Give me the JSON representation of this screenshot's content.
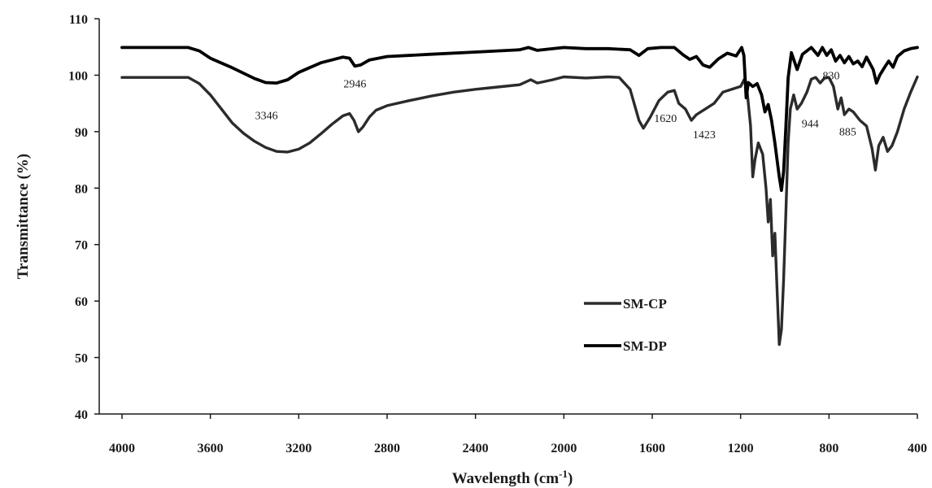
{
  "chart_data": {
    "type": "line",
    "xlabel": "Wavelength (cm",
    "xlabel_sup": "-1",
    "xlabel_end": ")",
    "ylabel": "Transmittance (%)",
    "xlim": [
      4000,
      400
    ],
    "ylim": [
      40,
      110
    ],
    "x_ticks": [
      "4000",
      "3600",
      "3200",
      "2800",
      "2400",
      "2000",
      "1600",
      "1200",
      "800",
      "400"
    ],
    "y_ticks": [
      "40",
      "50",
      "60",
      "70",
      "80",
      "90",
      "100",
      "110"
    ],
    "grid": false,
    "legend_position": "center-left",
    "annotations": [
      {
        "text": "3346",
        "x": 3346,
        "y": 92.2
      },
      {
        "text": "2946",
        "x": 2946,
        "y": 97.8
      },
      {
        "text": "1620",
        "x": 1540,
        "y": 91.7
      },
      {
        "text": "1423",
        "x": 1365,
        "y": 88.8
      },
      {
        "text": "944",
        "x": 885,
        "y": 90.8
      },
      {
        "text": "885",
        "x": 715,
        "y": 89.3
      },
      {
        "text": "830",
        "x": 790,
        "y": 99.3
      }
    ],
    "series": [
      {
        "name": "SM-CP",
        "color": "#2b2b2b",
        "points": [
          [
            4000,
            99.6
          ],
          [
            3700,
            99.6
          ],
          [
            3650,
            98.5
          ],
          [
            3600,
            96.5
          ],
          [
            3550,
            94
          ],
          [
            3500,
            91.5
          ],
          [
            3450,
            89.7
          ],
          [
            3400,
            88.3
          ],
          [
            3350,
            87.2
          ],
          [
            3300,
            86.5
          ],
          [
            3250,
            86.4
          ],
          [
            3200,
            86.9
          ],
          [
            3150,
            88
          ],
          [
            3100,
            89.6
          ],
          [
            3050,
            91.3
          ],
          [
            3000,
            92.8
          ],
          [
            2970,
            93.2
          ],
          [
            2950,
            92
          ],
          [
            2930,
            90
          ],
          [
            2910,
            90.8
          ],
          [
            2880,
            92.6
          ],
          [
            2850,
            93.8
          ],
          [
            2800,
            94.6
          ],
          [
            2700,
            95.5
          ],
          [
            2600,
            96.3
          ],
          [
            2500,
            97
          ],
          [
            2400,
            97.5
          ],
          [
            2300,
            97.9
          ],
          [
            2200,
            98.3
          ],
          [
            2150,
            99.2
          ],
          [
            2120,
            98.6
          ],
          [
            2050,
            99.2
          ],
          [
            2000,
            99.7
          ],
          [
            1900,
            99.5
          ],
          [
            1800,
            99.7
          ],
          [
            1750,
            99.6
          ],
          [
            1700,
            97.5
          ],
          [
            1660,
            92
          ],
          [
            1640,
            90.6
          ],
          [
            1610,
            92.5
          ],
          [
            1570,
            95.5
          ],
          [
            1530,
            97
          ],
          [
            1500,
            97.3
          ],
          [
            1480,
            95
          ],
          [
            1450,
            94
          ],
          [
            1423,
            92
          ],
          [
            1400,
            93
          ],
          [
            1360,
            94
          ],
          [
            1320,
            95
          ],
          [
            1280,
            97
          ],
          [
            1240,
            97.5
          ],
          [
            1200,
            98
          ],
          [
            1180,
            99.5
          ],
          [
            1170,
            97
          ],
          [
            1155,
            91
          ],
          [
            1145,
            82
          ],
          [
            1135,
            85
          ],
          [
            1120,
            88
          ],
          [
            1100,
            86
          ],
          [
            1085,
            80
          ],
          [
            1075,
            74
          ],
          [
            1065,
            78
          ],
          [
            1055,
            68
          ],
          [
            1045,
            72
          ],
          [
            1035,
            62
          ],
          [
            1025,
            52.3
          ],
          [
            1015,
            55
          ],
          [
            1005,
            64
          ],
          [
            995,
            76
          ],
          [
            985,
            88
          ],
          [
            975,
            94
          ],
          [
            960,
            96.5
          ],
          [
            944,
            94
          ],
          [
            925,
            95
          ],
          [
            900,
            97
          ],
          [
            880,
            99.3
          ],
          [
            860,
            99.6
          ],
          [
            840,
            98.6
          ],
          [
            820,
            99.5
          ],
          [
            800,
            99.6
          ],
          [
            780,
            98
          ],
          [
            760,
            94
          ],
          [
            745,
            96
          ],
          [
            730,
            93
          ],
          [
            710,
            94
          ],
          [
            690,
            93.5
          ],
          [
            660,
            92
          ],
          [
            630,
            91
          ],
          [
            605,
            87
          ],
          [
            590,
            83.2
          ],
          [
            575,
            87.5
          ],
          [
            555,
            89
          ],
          [
            535,
            86.5
          ],
          [
            515,
            87.5
          ],
          [
            490,
            90
          ],
          [
            460,
            94
          ],
          [
            430,
            97
          ],
          [
            400,
            99.7
          ]
        ]
      },
      {
        "name": "SM-DP",
        "color": "#000000",
        "points": [
          [
            4000,
            104.9
          ],
          [
            3700,
            104.9
          ],
          [
            3650,
            104.3
          ],
          [
            3600,
            103
          ],
          [
            3500,
            101.3
          ],
          [
            3400,
            99.4
          ],
          [
            3350,
            98.7
          ],
          [
            3300,
            98.6
          ],
          [
            3250,
            99.2
          ],
          [
            3200,
            100.5
          ],
          [
            3100,
            102.2
          ],
          [
            3000,
            103.2
          ],
          [
            2970,
            103
          ],
          [
            2946,
            101.6
          ],
          [
            2920,
            101.8
          ],
          [
            2880,
            102.7
          ],
          [
            2800,
            103.3
          ],
          [
            2600,
            103.7
          ],
          [
            2400,
            104.1
          ],
          [
            2200,
            104.5
          ],
          [
            2160,
            104.9
          ],
          [
            2120,
            104.4
          ],
          [
            2000,
            104.9
          ],
          [
            1900,
            104.7
          ],
          [
            1800,
            104.7
          ],
          [
            1700,
            104.5
          ],
          [
            1660,
            103.5
          ],
          [
            1620,
            104.7
          ],
          [
            1560,
            104.9
          ],
          [
            1500,
            104.9
          ],
          [
            1460,
            103.6
          ],
          [
            1430,
            102.8
          ],
          [
            1400,
            103.3
          ],
          [
            1370,
            101.8
          ],
          [
            1340,
            101.4
          ],
          [
            1300,
            102.9
          ],
          [
            1260,
            103.9
          ],
          [
            1220,
            103.4
          ],
          [
            1195,
            104.9
          ],
          [
            1185,
            103.5
          ],
          [
            1175,
            96
          ],
          [
            1165,
            98.7
          ],
          [
            1145,
            98
          ],
          [
            1125,
            98.5
          ],
          [
            1105,
            96.5
          ],
          [
            1090,
            93.5
          ],
          [
            1075,
            94.8
          ],
          [
            1060,
            92
          ],
          [
            1045,
            88
          ],
          [
            1035,
            85
          ],
          [
            1025,
            82
          ],
          [
            1015,
            79.6
          ],
          [
            1005,
            83
          ],
          [
            995,
            91
          ],
          [
            985,
            99.5
          ],
          [
            970,
            104
          ],
          [
            944,
            101
          ],
          [
            920,
            103.7
          ],
          [
            880,
            104.9
          ],
          [
            850,
            103.5
          ],
          [
            830,
            104.9
          ],
          [
            810,
            103.5
          ],
          [
            790,
            104.5
          ],
          [
            770,
            102.5
          ],
          [
            750,
            103.5
          ],
          [
            730,
            102.2
          ],
          [
            710,
            103.3
          ],
          [
            690,
            102
          ],
          [
            670,
            102.5
          ],
          [
            650,
            101.5
          ],
          [
            630,
            103.2
          ],
          [
            600,
            101
          ],
          [
            585,
            98.6
          ],
          [
            570,
            100
          ],
          [
            550,
            101.3
          ],
          [
            530,
            102.5
          ],
          [
            510,
            101.4
          ],
          [
            490,
            103.3
          ],
          [
            460,
            104.3
          ],
          [
            430,
            104.7
          ],
          [
            400,
            104.9
          ]
        ]
      }
    ]
  }
}
